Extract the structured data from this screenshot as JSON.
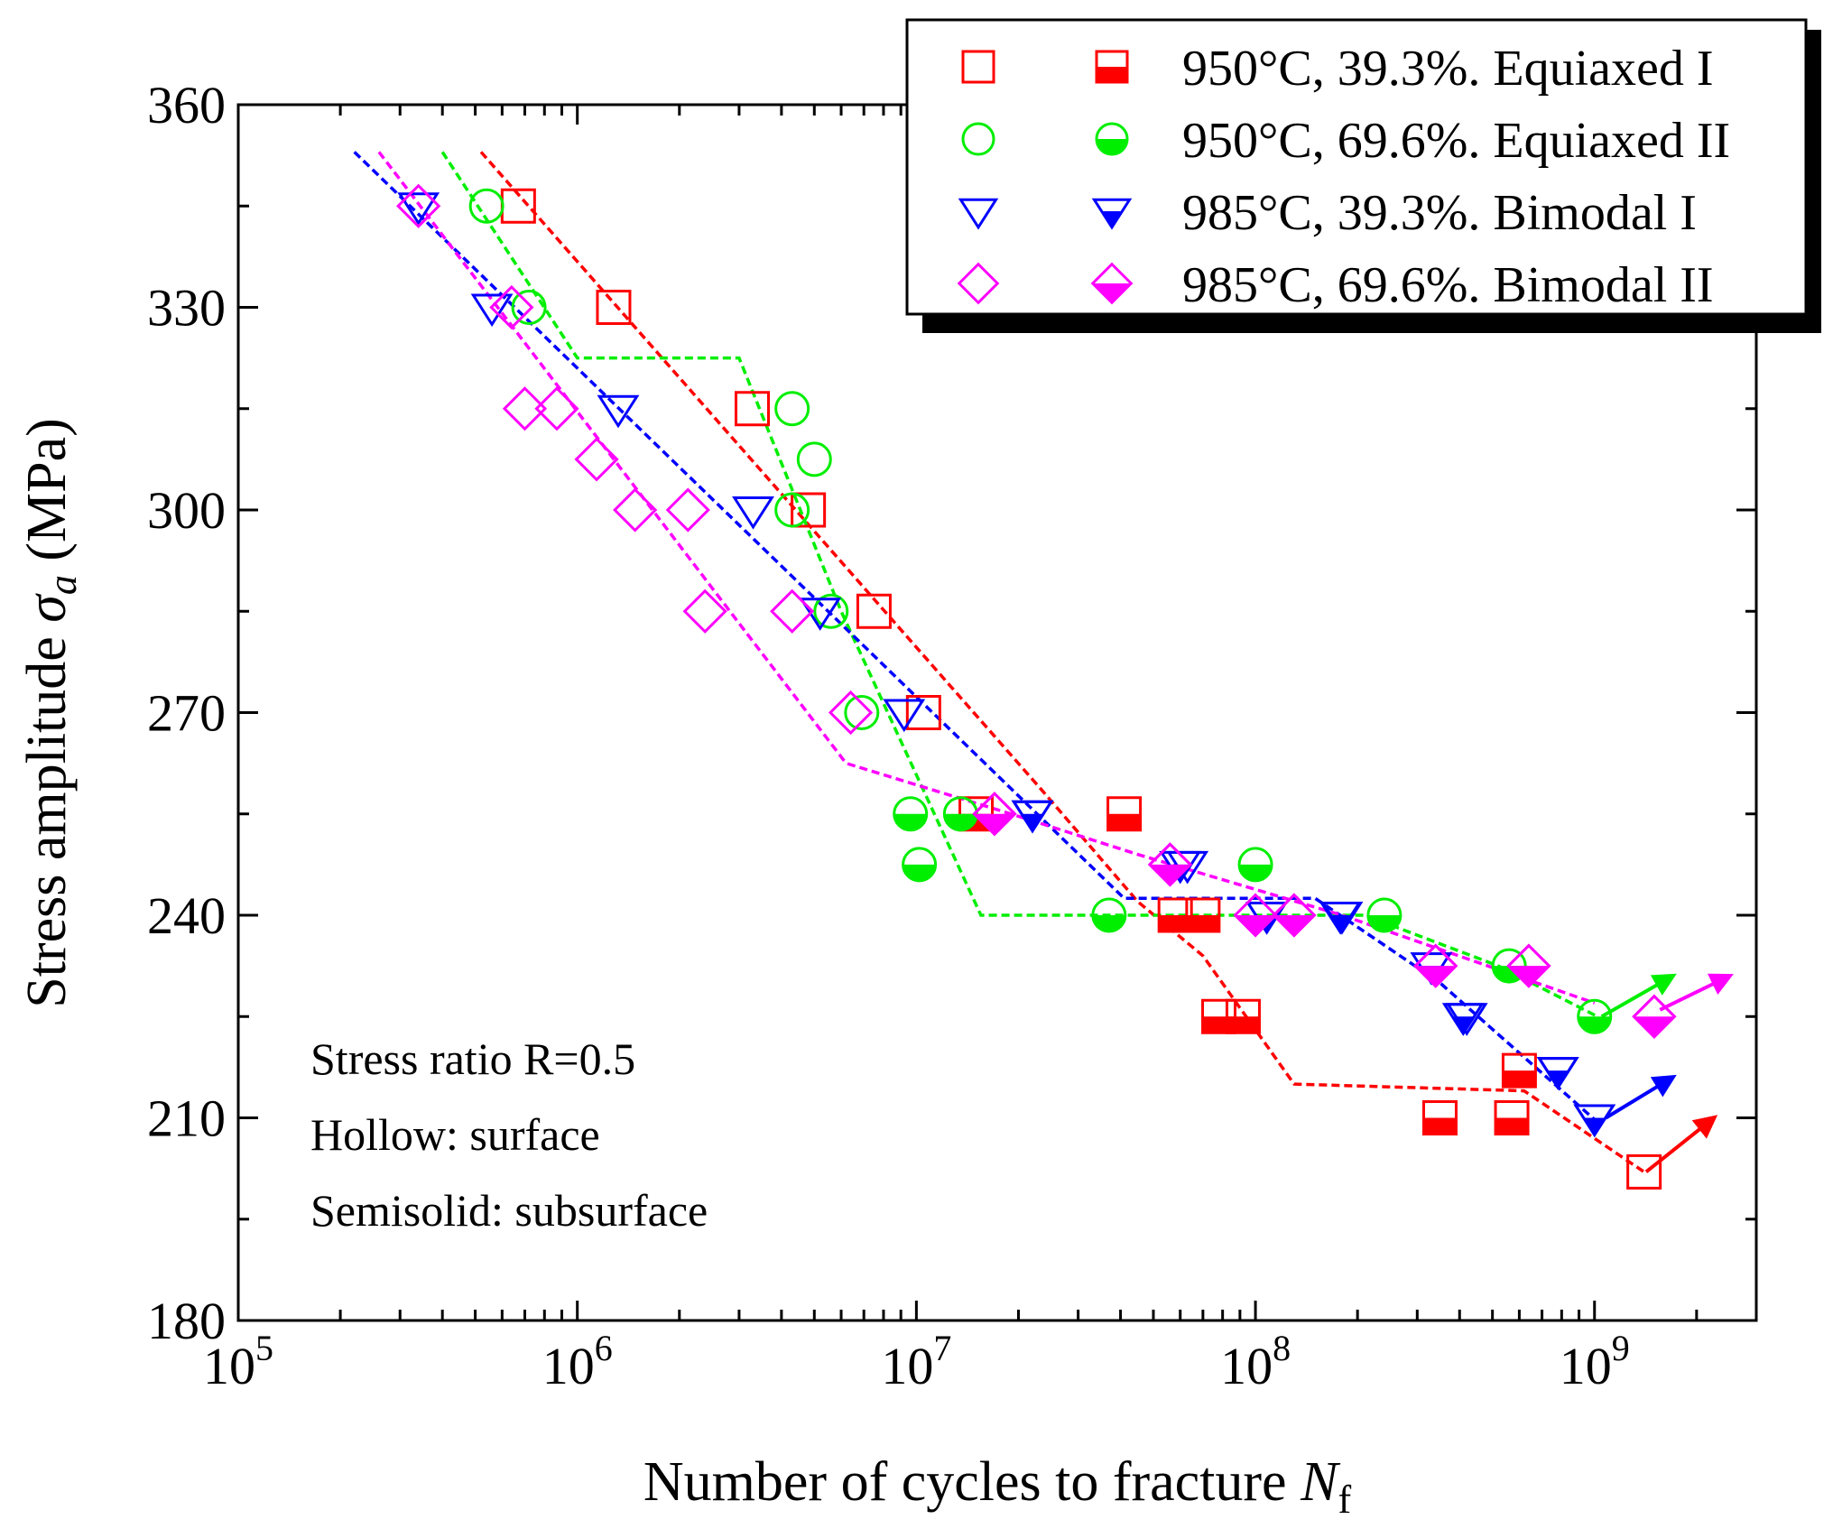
{
  "chart_data": {
    "type": "scatter",
    "xlabel": "Number of cycles to fracture N_f",
    "xlabel_main": "Number of cycles to fracture ",
    "xlabel_sym": "N",
    "xlabel_sub": "f",
    "ylabel": "Stress amplitude σ_a (MPa)",
    "ylabel_main": "Stress amplitude ",
    "ylabel_sym": "σ",
    "ylabel_sub": "a",
    "ylabel_unit": " (MPa)",
    "xscale": "log",
    "xlim": [
      100000,
      3000000000
    ],
    "ylim": [
      180,
      360
    ],
    "x_ticks": [
      {
        "value": 100000,
        "base": "10",
        "exp": "5"
      },
      {
        "value": 1000000,
        "base": "10",
        "exp": "6"
      },
      {
        "value": 10000000,
        "base": "10",
        "exp": "7"
      },
      {
        "value": 100000000,
        "base": "10",
        "exp": "8"
      },
      {
        "value": 1000000000,
        "base": "10",
        "exp": "9"
      }
    ],
    "y_ticks": [
      180,
      210,
      240,
      270,
      300,
      330,
      360
    ],
    "legend_position": "top-right",
    "annotation_lines": [
      "Stress ratio R=0.5",
      "Hollow: surface",
      "Semisolid: subsurface"
    ],
    "series": [
      {
        "name": "950°C, 39.3%. Equiaxed I",
        "color": "#ff0000",
        "marker": "square",
        "hollow": [
          [
            670000,
            345
          ],
          [
            1280000,
            330
          ],
          [
            3280000,
            315
          ],
          [
            4800000,
            300
          ],
          [
            7500000,
            285
          ],
          [
            10500000,
            270
          ],
          [
            1400000000,
            202
          ]
        ],
        "semisolid": [
          [
            15000000,
            255
          ],
          [
            41000000,
            255
          ],
          [
            58000000,
            240
          ],
          [
            70000000,
            240
          ],
          [
            78000000,
            225
          ],
          [
            92000000,
            225
          ],
          [
            350000000,
            210
          ],
          [
            570000000,
            210
          ],
          [
            600000000,
            217
          ]
        ],
        "fit": [
          [
            520000,
            353
          ],
          [
            23000000,
            259
          ],
          [
            45000000,
            242
          ],
          [
            70000000,
            234
          ],
          [
            130000000,
            215
          ],
          [
            620000000,
            214
          ],
          [
            1400000000,
            202
          ]
        ],
        "arrow": [
          [
            1420000000,
            202
          ],
          [
            2250000000,
            210
          ]
        ]
      },
      {
        "name": "950°C, 69.6%. Equiaxed II",
        "color": "#00ee00",
        "marker": "circle",
        "hollow": [
          [
            540000,
            345
          ],
          [
            720000,
            330
          ],
          [
            4300000,
            315
          ],
          [
            5000000,
            307.5
          ],
          [
            4300000,
            300
          ],
          [
            5600000,
            285
          ],
          [
            6900000,
            270
          ]
        ],
        "semisolid": [
          [
            9600000,
            255
          ],
          [
            13500000,
            255
          ],
          [
            10200000,
            247.5
          ],
          [
            37000000,
            240
          ],
          [
            100000000,
            247.5
          ],
          [
            240000000,
            240
          ],
          [
            560000000,
            232.5
          ],
          [
            1000000000,
            225
          ]
        ],
        "fit": [
          [
            400000,
            353
          ],
          [
            1000000,
            322.5
          ],
          [
            3000000,
            322.5
          ],
          [
            6000000,
            285
          ],
          [
            15500000,
            240
          ],
          [
            210000000,
            240
          ],
          [
            520000000,
            232.5
          ],
          [
            1020000000,
            225
          ]
        ],
        "arrow": [
          [
            1050000000,
            225
          ],
          [
            1700000000,
            231
          ]
        ]
      },
      {
        "name": "985°C, 39.3%. Bimodal I",
        "color": "#0000ff",
        "marker": "triangle-down",
        "hollow": [
          [
            340000,
            345
          ],
          [
            560000,
            330
          ],
          [
            1320000,
            315
          ],
          [
            3300000,
            300
          ],
          [
            5200000,
            285
          ],
          [
            9200000,
            270
          ],
          [
            22000000,
            255
          ],
          [
            63000000,
            247.5
          ],
          [
            108000000,
            240
          ],
          [
            178000000,
            240
          ],
          [
            420000000,
            225
          ],
          [
            780000000,
            217
          ],
          [
            1000000000,
            210
          ]
        ],
        "semisolid": [
          [
            22000000,
            255
          ],
          [
            60000000,
            247.5
          ],
          [
            108000000,
            240
          ],
          [
            180000000,
            240
          ],
          [
            330000000,
            232.5
          ],
          [
            410000000,
            225
          ],
          [
            780000000,
            217
          ],
          [
            1000000000,
            210
          ]
        ],
        "fit": [
          [
            220000,
            353
          ],
          [
            41000000,
            242.5
          ],
          [
            150000000,
            242.5
          ],
          [
            350000000,
            230
          ],
          [
            1040000000,
            209
          ]
        ],
        "arrow": [
          [
            1080000000,
            210
          ],
          [
            1700000000,
            216
          ]
        ]
      },
      {
        "name": "985°C, 69.6%. Bimodal II",
        "color": "#ff00ff",
        "marker": "diamond",
        "hollow": [
          [
            340000,
            345
          ],
          [
            640000,
            330
          ],
          [
            700000,
            315
          ],
          [
            870000,
            315
          ],
          [
            1140000,
            307.5
          ],
          [
            1480000,
            300
          ],
          [
            2120000,
            300
          ],
          [
            2380000,
            285
          ],
          [
            4300000,
            285
          ],
          [
            6400000,
            270
          ],
          [
            17000000,
            255
          ],
          [
            56000000,
            247.5
          ],
          [
            130000000,
            240
          ],
          [
            340000000,
            232.5
          ],
          [
            640000000,
            232.5
          ],
          [
            1500000000,
            225
          ]
        ],
        "semisolid": [
          [
            17000000,
            255
          ],
          [
            56000000,
            247.5
          ],
          [
            100000000,
            240
          ],
          [
            130000000,
            240
          ],
          [
            340000000,
            232.5
          ],
          [
            640000000,
            232.5
          ],
          [
            1500000000,
            225
          ]
        ],
        "fit": [
          [
            260000,
            353
          ],
          [
            6200000,
            262.5
          ],
          [
            19000000,
            255
          ],
          [
            45000000,
            249
          ],
          [
            180000000,
            240
          ],
          [
            1000000000,
            227
          ]
        ],
        "arrow": [
          [
            1560000000,
            226
          ],
          [
            2500000000,
            231
          ]
        ]
      }
    ]
  }
}
